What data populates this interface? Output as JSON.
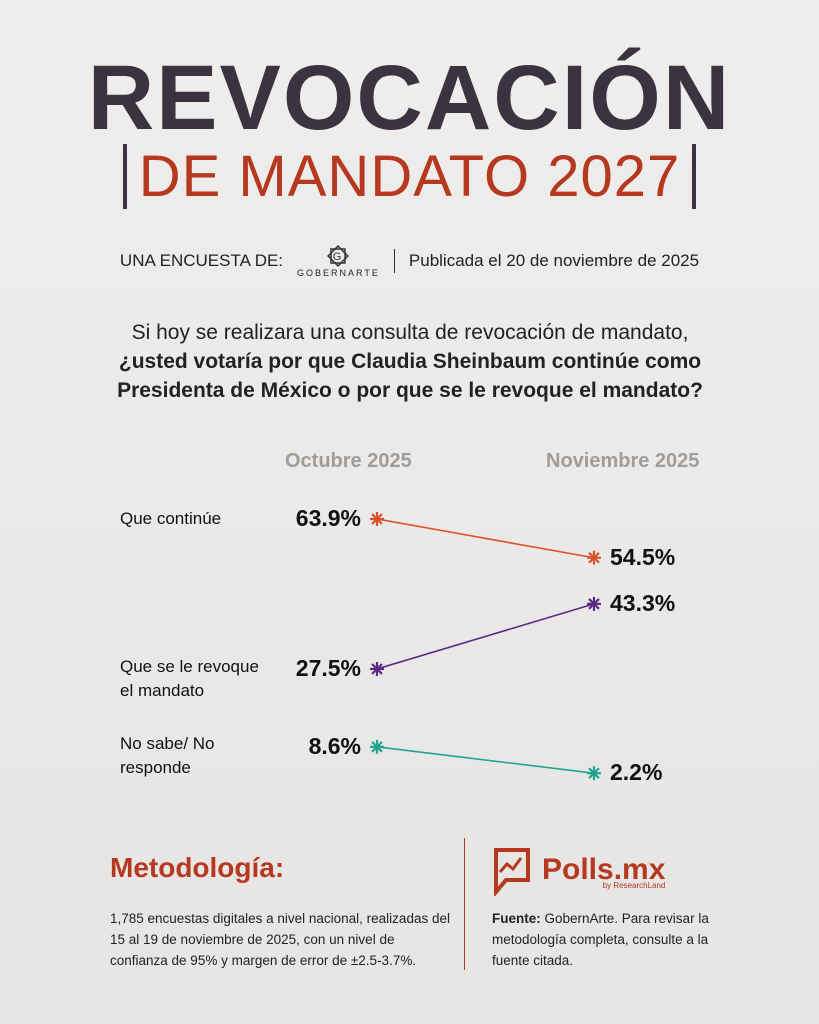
{
  "title": {
    "line1": "REVOCACIÓN",
    "line2": "DE MANDATO 2027"
  },
  "byline": {
    "prefix": "UNA ENCUESTA DE:",
    "pollster_logo": "GOBERNARTE",
    "published": "Publicada el 20 de noviembre de 2025"
  },
  "question": {
    "line1": "Si hoy se realizara una consulta de revocación de mandato,",
    "line2": "¿usted votaría por que Claudia Sheinbaum continúe como Presidenta de México o por que se le revoque el mandato?"
  },
  "colors": {
    "title": "#3b3340",
    "accent": "#b5381f",
    "continue": "#d9532a",
    "revoke": "#5b2a86",
    "unknown": "#1fa38f"
  },
  "chart_data": {
    "type": "line",
    "x": [
      "Octubre 2025",
      "Noviembre 2025"
    ],
    "series": [
      {
        "name": "Que continúe",
        "values": [
          63.9,
          54.5
        ],
        "labels": [
          "63.9%",
          "54.5%"
        ],
        "color": "#d9532a"
      },
      {
        "name": "Que se le revoque el mandato",
        "values": [
          27.5,
          43.3
        ],
        "labels": [
          "27.5%",
          "43.3%"
        ],
        "color": "#5b2a86"
      },
      {
        "name": "No sabe/ No responde",
        "values": [
          8.6,
          2.2
        ],
        "labels": [
          "8.6%",
          "2.2%"
        ],
        "color": "#1fa38f"
      }
    ],
    "ylabel": "",
    "grid": false
  },
  "methodology": {
    "heading": "Metodología:",
    "text": "1,785 encuestas digitales a nivel nacional, realizadas del 15 al 19 de noviembre de 2025, con un nivel de confianza de 95% y margen de error de ±2.5-3.7%."
  },
  "source": {
    "brand": "Polls.mx",
    "brand_sub": "by ResearchLand",
    "label": "Fuente:",
    "text": " GobernArte. Para revisar la metodología completa, consulte a la fuente citada."
  }
}
